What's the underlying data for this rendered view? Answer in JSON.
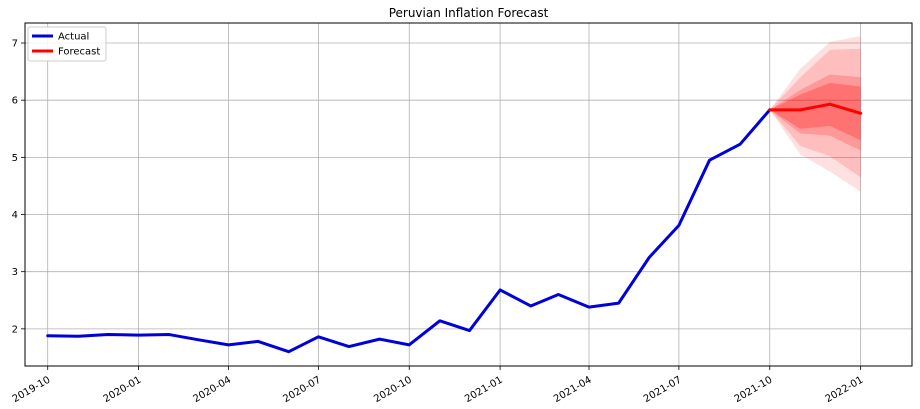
{
  "chart_data": {
    "type": "line",
    "title": "Peruvian Inflation Forecast",
    "xlabel": "",
    "ylabel": "",
    "xlim": [
      "2019-09-08",
      "2022-02-22"
    ],
    "ylim": [
      1.35,
      7.35
    ],
    "grid": true,
    "legend_position": "top-left",
    "x_ticks": [
      "2019-10",
      "2020-01",
      "2020-04",
      "2020-07",
      "2020-10",
      "2021-01",
      "2021-04",
      "2021-07",
      "2021-10",
      "2022-01"
    ],
    "y_ticks": [
      2,
      3,
      4,
      5,
      6,
      7
    ],
    "series": [
      {
        "name": "Actual",
        "color": "#0000dd",
        "x": [
          "2019-10-01",
          "2019-11-01",
          "2019-12-01",
          "2020-01-01",
          "2020-02-01",
          "2020-03-01",
          "2020-04-01",
          "2020-05-01",
          "2020-06-01",
          "2020-07-01",
          "2020-08-01",
          "2020-09-01",
          "2020-10-01",
          "2020-11-01",
          "2020-12-01",
          "2021-01-01",
          "2021-02-01",
          "2021-03-01",
          "2021-04-01",
          "2021-05-01",
          "2021-06-01",
          "2021-07-01",
          "2021-08-01",
          "2021-09-01",
          "2021-10-01"
        ],
        "values": [
          1.88,
          1.87,
          1.9,
          1.89,
          1.9,
          1.81,
          1.72,
          1.78,
          1.6,
          1.86,
          1.69,
          1.82,
          1.72,
          2.14,
          1.97,
          2.68,
          2.4,
          2.6,
          2.38,
          2.45,
          3.25,
          3.81,
          4.95,
          5.23,
          5.83
        ]
      },
      {
        "name": "Forecast",
        "color": "#ff0000",
        "x": [
          "2021-10-01",
          "2021-11-01",
          "2021-12-01",
          "2022-01-01"
        ],
        "values": [
          5.83,
          5.83,
          5.93,
          5.77
        ]
      }
    ],
    "forecast_bands": [
      {
        "lower": [
          5.83,
          5.05,
          4.75,
          4.4
        ],
        "upper": [
          5.83,
          6.55,
          7.02,
          7.12
        ],
        "opacity": 0.12
      },
      {
        "lower": [
          5.83,
          5.2,
          5.02,
          4.65
        ],
        "upper": [
          5.83,
          6.4,
          6.88,
          6.9
        ],
        "opacity": 0.15
      },
      {
        "lower": [
          5.83,
          5.42,
          5.38,
          5.12
        ],
        "upper": [
          5.83,
          6.18,
          6.45,
          6.4
        ],
        "opacity": 0.2
      },
      {
        "lower": [
          5.83,
          5.5,
          5.55,
          5.3
        ],
        "upper": [
          5.83,
          6.1,
          6.3,
          6.24
        ],
        "opacity": 0.25
      }
    ],
    "band_color": "#ff0000"
  }
}
